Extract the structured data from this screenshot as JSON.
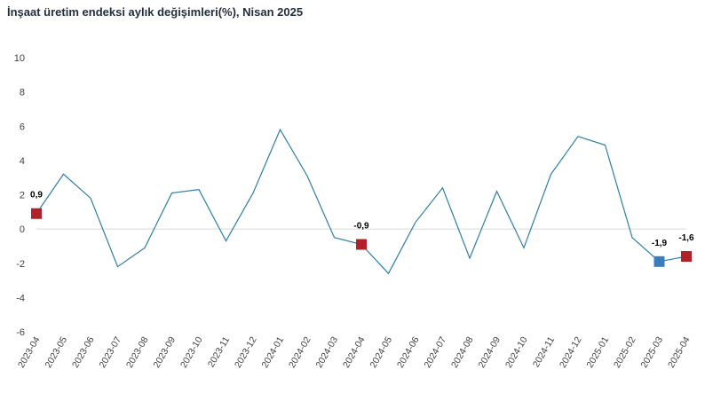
{
  "chart_data": {
    "type": "line",
    "title": "İnşaat üretim endeksi aylık değişimleri(%), Nisan 2025",
    "xlabel": "",
    "ylabel": "",
    "ylim": [
      -6,
      10
    ],
    "yticks": [
      "-6",
      "-4",
      "-2",
      "0",
      "2",
      "4",
      "6",
      "8",
      "10"
    ],
    "grid": false,
    "categories": [
      "2023-04",
      "2023-05",
      "2023-06",
      "2023-07",
      "2023-08",
      "2023-09",
      "2023-10",
      "2023-11",
      "2023-12",
      "2024-01",
      "2024-02",
      "2024-03",
      "2024-04",
      "2024-05",
      "2024-06",
      "2024-07",
      "2024-08",
      "2024-09",
      "2024-10",
      "2024-11",
      "2024-12",
      "2025-01",
      "2025-02",
      "2025-03",
      "2025-04"
    ],
    "values": [
      0.9,
      3.2,
      1.8,
      -2.2,
      -1.1,
      2.1,
      2.3,
      -0.7,
      2.1,
      5.8,
      3.1,
      -0.5,
      -0.9,
      -2.6,
      0.4,
      2.4,
      -1.7,
      2.2,
      -1.1,
      3.2,
      5.4,
      4.9,
      -0.5,
      -1.9,
      -1.6
    ],
    "line_color": "#2e7ea6",
    "highlighted_points": [
      {
        "index": 0,
        "label": "0,9",
        "color": "#b22028"
      },
      {
        "index": 12,
        "label": "-0,9",
        "color": "#b22028"
      },
      {
        "index": 23,
        "label": "-1,9",
        "color": "#3a7dbf"
      },
      {
        "index": 24,
        "label": "-1,6",
        "color": "#b22028"
      }
    ]
  }
}
